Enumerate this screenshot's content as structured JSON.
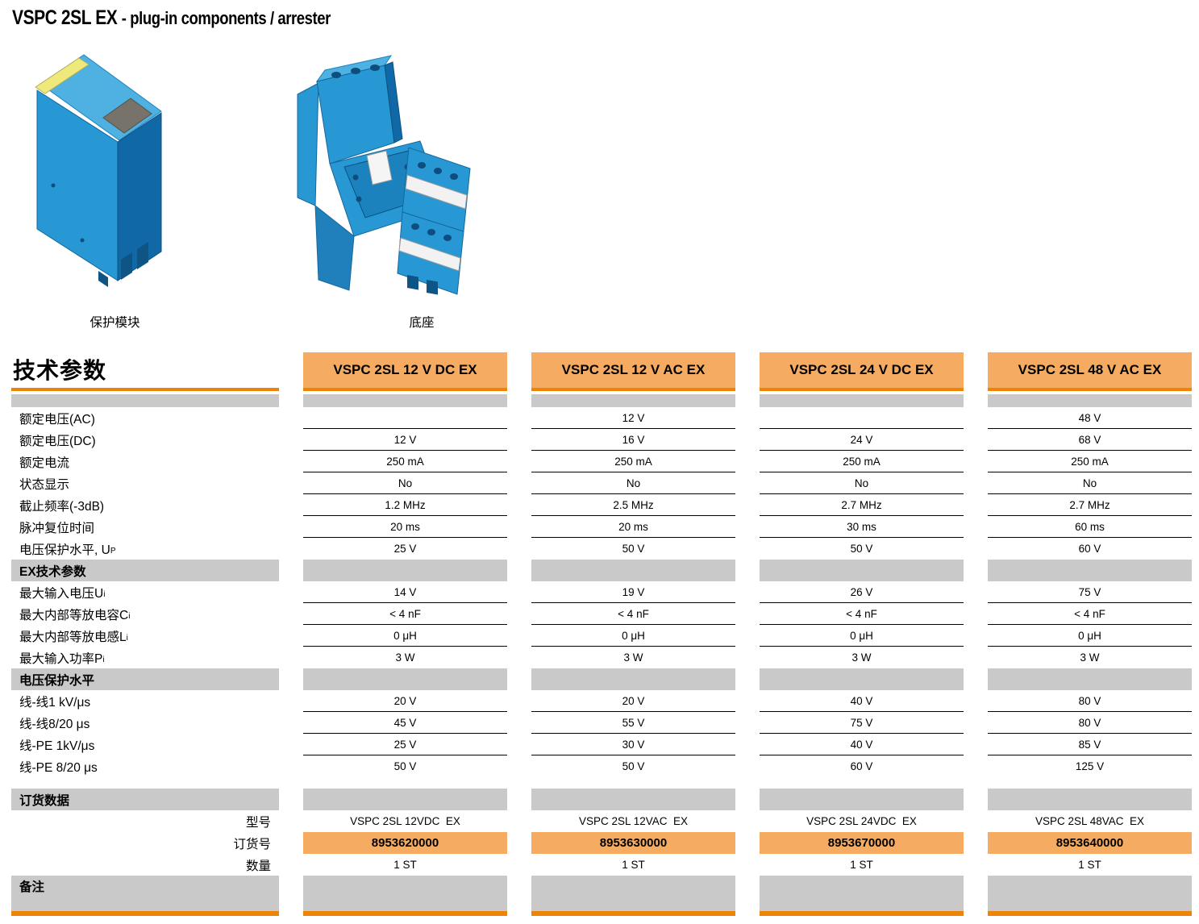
{
  "page": {
    "title_main": "VSPC 2SL EX",
    "title_sub": "- plug-in components / arrester"
  },
  "figures": {
    "module_caption": "保护模块",
    "base_caption": "底座"
  },
  "colors": {
    "orange_light": "#F5AC62",
    "orange_dark": "#EC8407",
    "band_gray": "#C9C9C9",
    "module_blue": "#2798D4",
    "module_blue_dark": "#1068A6",
    "module_blue_light": "#4FB0E2",
    "label_yellow": "#EFE87A"
  },
  "table": {
    "left_header": "技术参数",
    "columns": [
      "VSPC 2SL 12 V DC EX",
      "VSPC 2SL 12 V AC EX",
      "VSPC 2SL 24 V DC EX",
      "VSPC 2SL 48 V AC EX"
    ],
    "sections": [
      {
        "type": "band",
        "label": ""
      },
      {
        "type": "rows",
        "borders": true,
        "rows": [
          {
            "label": "额定电压(AC)",
            "values": [
              "",
              "12 V",
              "",
              "48 V"
            ]
          },
          {
            "label": "额定电压(DC)",
            "values": [
              "12 V",
              "16 V",
              "24 V",
              "68 V"
            ]
          },
          {
            "label": "额定电流",
            "values": [
              "250 mA",
              "250 mA",
              "250 mA",
              "250 mA"
            ]
          },
          {
            "label": "状态显示",
            "values": [
              "No",
              "No",
              "No",
              "No"
            ]
          },
          {
            "label": "截止频率(-3dB)",
            "values": [
              "1.2 MHz",
              "2.5 MHz",
              "2.7 MHz",
              "2.7 MHz"
            ]
          },
          {
            "label": "脉冲复位时间",
            "values": [
              "20 ms",
              "20 ms",
              "30 ms",
              "60 ms"
            ]
          },
          {
            "label": "电压保护水平, U",
            "sub": "P",
            "values": [
              "25 V",
              "50 V",
              "50 V",
              "60 V"
            ]
          }
        ]
      },
      {
        "type": "band",
        "label": "EX技术参数"
      },
      {
        "type": "rows",
        "borders": true,
        "rows": [
          {
            "label": "最大输入电压U",
            "sub": "i",
            "values": [
              "14 V",
              "19 V",
              "26 V",
              "75 V"
            ]
          },
          {
            "label": "最大内部等放电容C",
            "sub": "i",
            "values": [
              "< 4 nF",
              "< 4 nF",
              "< 4 nF",
              "< 4 nF"
            ]
          },
          {
            "label": "最大内部等放电感L",
            "sub": "i",
            "values": [
              "0 μH",
              "0 μH",
              "0 μH",
              "0 μH"
            ]
          },
          {
            "label": "最大输入功率P",
            "sub": "i",
            "values": [
              "3 W",
              "3 W",
              "3 W",
              "3 W"
            ]
          }
        ]
      },
      {
        "type": "band",
        "label": "电压保护水平"
      },
      {
        "type": "rows",
        "borders": true,
        "rows": [
          {
            "label": "线-线1 kV/μs",
            "values": [
              "20 V",
              "20 V",
              "40 V",
              "80 V"
            ]
          },
          {
            "label": "线-线8/20 μs",
            "values": [
              "45 V",
              "55 V",
              "75 V",
              "80 V"
            ]
          },
          {
            "label": "线-PE 1kV/μs",
            "values": [
              "25 V",
              "30 V",
              "40 V",
              "85 V"
            ]
          },
          {
            "label": "线-PE 8/20 μs",
            "values": [
              "50 V",
              "50 V",
              "60 V",
              "125 V"
            ]
          }
        ]
      },
      {
        "type": "gap"
      },
      {
        "type": "band",
        "label": "订货数据"
      },
      {
        "type": "rows",
        "borders": false,
        "rows": [
          {
            "label": "型号",
            "align": "right",
            "values": [
              "VSPC 2SL 12VDC  EX",
              "VSPC 2SL 12VAC  EX",
              "VSPC 2SL 24VDC  EX",
              "VSPC 2SL 48VAC  EX"
            ]
          },
          {
            "label": "订货号",
            "align": "right",
            "style": "order",
            "values": [
              "8953620000",
              "8953630000",
              "8953670000",
              "8953640000"
            ]
          },
          {
            "label": "数量",
            "align": "right",
            "values": [
              "1 ST",
              "1 ST",
              "1 ST",
              "1 ST"
            ]
          }
        ]
      },
      {
        "type": "band",
        "label": "备注",
        "tall": true
      },
      {
        "type": "bar"
      }
    ]
  }
}
